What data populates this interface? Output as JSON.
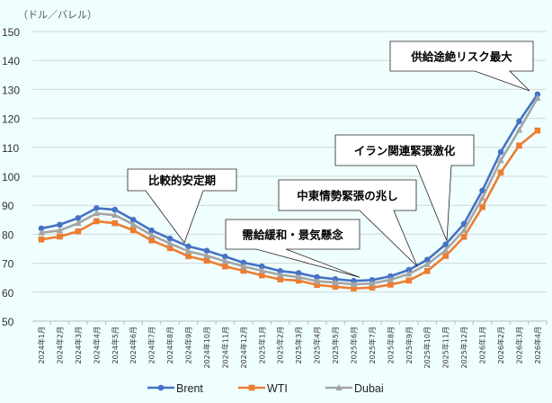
{
  "chart_data": {
    "type": "line",
    "unit_label": "（ドル／バレル）",
    "ylim": [
      50,
      150
    ],
    "yticks": [
      50,
      60,
      70,
      80,
      90,
      100,
      110,
      120,
      130,
      140,
      150
    ],
    "grid": true,
    "legend_position": "bottom",
    "categories": [
      "2024年1月",
      "2024年2月",
      "2024年3月",
      "2024年4月",
      "2024年5月",
      "2024年6月",
      "2024年7月",
      "2024年8月",
      "2024年9月",
      "2024年10月",
      "2024年11月",
      "2024年12月",
      "2025年1月",
      "2025年2月",
      "2025年3月",
      "2025年4月",
      "2025年5月",
      "2025年6月",
      "2025年7月",
      "2025年8月",
      "2025年9月",
      "2025年10月",
      "2025年11月",
      "2025年12月",
      "2026年1月",
      "2026年2月",
      "2026年3月",
      "2026年4月"
    ],
    "series": [
      {
        "name": "Brent",
        "color": "#4472c4",
        "marker": "circle",
        "values": [
          82,
          83.3,
          85.6,
          89,
          88.5,
          85,
          81.3,
          78.5,
          75.8,
          74.3,
          72.3,
          70.2,
          68.9,
          67.3,
          66.6,
          65.2,
          64.5,
          63.9,
          64.2,
          65.5,
          67.7,
          71.2,
          76.5,
          83.6,
          95.1,
          108.4,
          119,
          128.3
        ]
      },
      {
        "name": "WTI",
        "color": "#ed7d31",
        "marker": "square",
        "values": [
          78.2,
          79.2,
          81,
          84.5,
          83.8,
          81.4,
          77.9,
          75.2,
          72.4,
          70.9,
          68.9,
          67.4,
          65.8,
          64.4,
          64,
          62.5,
          61.9,
          61.3,
          61.6,
          62.6,
          64,
          67.3,
          72.5,
          79.1,
          89.4,
          101.3,
          110.6,
          115.8
        ]
      },
      {
        "name": "Dubai",
        "color": "#a5a5a5",
        "marker": "triangle",
        "values": [
          80.5,
          81.3,
          83.8,
          87.2,
          86.6,
          83.4,
          79.7,
          76.8,
          74.1,
          72.6,
          70.7,
          68.9,
          67.4,
          66,
          65.2,
          63.8,
          63.3,
          62.7,
          63,
          64.3,
          66.3,
          69.6,
          74.5,
          81.4,
          92.5,
          105.5,
          116,
          127
        ]
      }
    ],
    "annotations": [
      {
        "text": "比較的安定期",
        "target": "2024年9月"
      },
      {
        "text": "需給緩和・景気懸念",
        "target": "2025年6月"
      },
      {
        "text": "中東情勢緊張の兆し",
        "target": "2025年9月"
      },
      {
        "text": "イラン関連緊張激化",
        "target": "2025年11月"
      },
      {
        "text": "供給途絶リスク最大",
        "target": "2026年4月"
      }
    ]
  }
}
